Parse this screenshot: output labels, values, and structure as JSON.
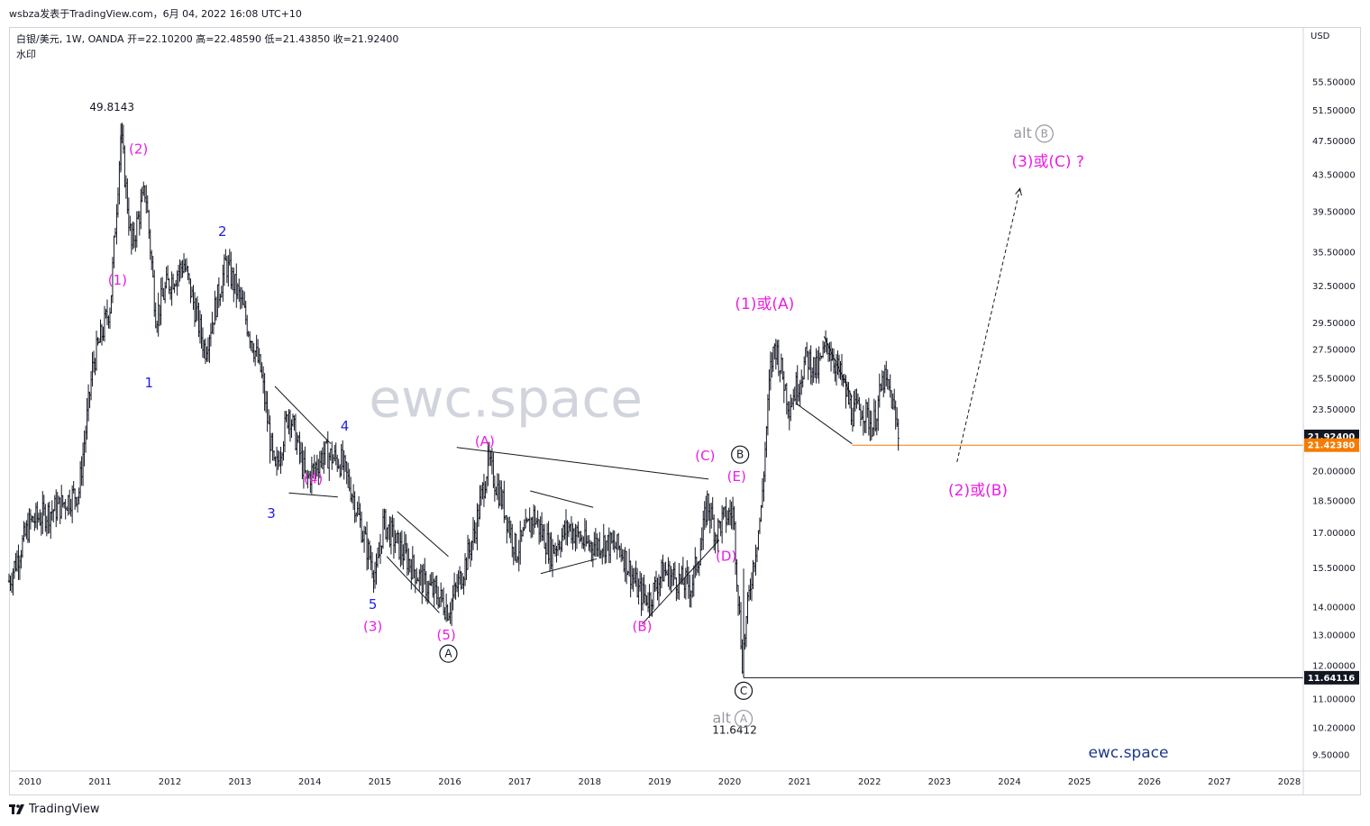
{
  "header": {
    "caption": "wsbza发表于TradingView.com，6月 04, 2022 16:08 UTC+10",
    "symbol_line": "白银/美元, 1W, OANDA  开=22.10200  高=22.48590  低=21.43850  收=21.92400",
    "watermark_label": "水印"
  },
  "footer": {
    "logo_text": "TradingView"
  },
  "colors": {
    "candle": "#131722",
    "magenta": "#e91ee3",
    "blue": "#1e22e6",
    "grey": "#9598a1",
    "orange": "#f57c00",
    "watermark": "#d1d4dc",
    "brand": "#1e3a8a"
  },
  "chart_data": {
    "type": "candlestick",
    "currency": "USD",
    "y_scale": "log",
    "ylim": [
      9.2,
      64
    ],
    "xlim": [
      2009.7,
      2028.2
    ],
    "x_ticks": [
      "2010",
      "2011",
      "2012",
      "2013",
      "2014",
      "2015",
      "2016",
      "2017",
      "2018",
      "2019",
      "2020",
      "2021",
      "2022",
      "2023",
      "2024",
      "2025",
      "2026",
      "2027",
      "2028"
    ],
    "y_ticks": [
      9.5,
      10.2,
      11.0,
      12.0,
      13.0,
      14.0,
      15.5,
      17.0,
      18.5,
      20.0,
      21.5,
      23.5,
      25.5,
      27.5,
      29.5,
      32.5,
      35.5,
      39.5,
      43.5,
      47.5,
      51.5,
      55.5,
      61.5
    ],
    "price_path": [
      [
        2009.7,
        15.0
      ],
      [
        2010.0,
        17.5
      ],
      [
        2010.4,
        18.2
      ],
      [
        2010.7,
        19.0
      ],
      [
        2010.9,
        26.5
      ],
      [
        2011.15,
        31.0
      ],
      [
        2011.3,
        48.5
      ],
      [
        2011.45,
        36.0
      ],
      [
        2011.65,
        42.0
      ],
      [
        2011.8,
        30.0
      ],
      [
        2011.95,
        32.5
      ],
      [
        2012.2,
        34.5
      ],
      [
        2012.5,
        27.5
      ],
      [
        2012.8,
        34.5
      ],
      [
        2013.0,
        31.5
      ],
      [
        2013.3,
        26.0
      ],
      [
        2013.5,
        19.8
      ],
      [
        2013.7,
        23.5
      ],
      [
        2013.95,
        19.5
      ],
      [
        2014.2,
        21.0
      ],
      [
        2014.45,
        20.5
      ],
      [
        2014.6,
        19.0
      ],
      [
        2014.8,
        16.5
      ],
      [
        2014.95,
        15.2
      ],
      [
        2015.05,
        17.5
      ],
      [
        2015.3,
        16.3
      ],
      [
        2015.6,
        15.0
      ],
      [
        2015.85,
        14.4
      ],
      [
        2015.98,
        13.9
      ],
      [
        2016.2,
        15.5
      ],
      [
        2016.35,
        17.0
      ],
      [
        2016.55,
        20.5
      ],
      [
        2016.75,
        18.5
      ],
      [
        2016.95,
        16.2
      ],
      [
        2017.2,
        17.8
      ],
      [
        2017.45,
        16.2
      ],
      [
        2017.7,
        17.3
      ],
      [
        2017.95,
        16.5
      ],
      [
        2018.2,
        16.6
      ],
      [
        2018.45,
        16.3
      ],
      [
        2018.7,
        14.6
      ],
      [
        2018.85,
        14.3
      ],
      [
        2019.05,
        15.4
      ],
      [
        2019.3,
        15.0
      ],
      [
        2019.45,
        14.8
      ],
      [
        2019.6,
        16.6
      ],
      [
        2019.68,
        18.5
      ],
      [
        2019.8,
        17.0
      ],
      [
        2019.9,
        17.6
      ],
      [
        2020.05,
        18.0
      ],
      [
        2020.18,
        12.2
      ],
      [
        2020.3,
        15.0
      ],
      [
        2020.45,
        18.0
      ],
      [
        2020.58,
        26.0
      ],
      [
        2020.65,
        28.0
      ],
      [
        2020.85,
        23.8
      ],
      [
        2021.0,
        25.5
      ],
      [
        2021.1,
        27.0
      ],
      [
        2021.25,
        26.0
      ],
      [
        2021.4,
        28.0
      ],
      [
        2021.6,
        25.5
      ],
      [
        2021.75,
        23.3
      ],
      [
        2021.9,
        23.6
      ],
      [
        2022.05,
        22.5
      ],
      [
        2022.2,
        25.5
      ],
      [
        2022.3,
        24.5
      ],
      [
        2022.42,
        21.9
      ]
    ],
    "extreme_labels": [
      {
        "x": 2011.3,
        "y": 49.8143,
        "text": "49.8143"
      },
      {
        "x": 2020.2,
        "y": 11.6412,
        "text": "11.6412"
      }
    ],
    "price_tags": [
      {
        "value": "21.92400",
        "y": 21.924,
        "style": "dark"
      },
      {
        "value": "21.42380",
        "y": 21.4238,
        "style": "orange"
      },
      {
        "value": "11.64116",
        "y": 11.64116,
        "style": "dark"
      }
    ],
    "horizontal_lines": [
      {
        "x1": 2021.75,
        "x2": 2028.2,
        "y": 21.4238,
        "color": "orange"
      },
      {
        "x1": 2020.2,
        "x2": 2028.2,
        "y": 11.64116,
        "color": "dark"
      }
    ],
    "trendlines": [
      {
        "x1": 2013.5,
        "y1": 25.0,
        "x2": 2014.3,
        "y2": 21.5,
        "width": 1
      },
      {
        "x1": 2013.7,
        "y1": 18.9,
        "x2": 2014.4,
        "y2": 18.7,
        "width": 1
      },
      {
        "x1": 2015.1,
        "y1": 16.0,
        "x2": 2015.85,
        "y2": 13.8,
        "width": 1
      },
      {
        "x1": 2015.25,
        "y1": 18.0,
        "x2": 2015.98,
        "y2": 16.0,
        "width": 1
      },
      {
        "x1": 2016.1,
        "y1": 21.3,
        "x2": 2019.7,
        "y2": 19.6,
        "width": 1
      },
      {
        "x1": 2017.15,
        "y1": 19.0,
        "x2": 2018.05,
        "y2": 18.2,
        "width": 1
      },
      {
        "x1": 2017.3,
        "y1": 15.3,
        "x2": 2018.1,
        "y2": 15.9,
        "width": 1
      },
      {
        "x1": 2018.75,
        "y1": 13.4,
        "x2": 2019.85,
        "y2": 16.7,
        "width": 1
      },
      {
        "x1": 2021.35,
        "y1": 28.5,
        "x2": 2021.75,
        "y2": 24.3,
        "width": 1
      },
      {
        "x1": 2020.95,
        "y1": 23.9,
        "x2": 2021.75,
        "y2": 21.5,
        "width": 1
      }
    ],
    "projection_arrow": {
      "x1": 2023.25,
      "y1": 20.5,
      "x2": 2024.15,
      "y2": 42.0
    },
    "wave_labels": [
      {
        "x": 2011.55,
        "y": 46.5,
        "text": "(2)",
        "color": "magenta"
      },
      {
        "x": 2011.25,
        "y": 33.0,
        "text": "(1)",
        "color": "magenta"
      },
      {
        "x": 2011.7,
        "y": 25.2,
        "text": "1",
        "color": "blue"
      },
      {
        "x": 2012.75,
        "y": 37.5,
        "text": "2",
        "color": "blue"
      },
      {
        "x": 2013.45,
        "y": 17.9,
        "text": "3",
        "color": "blue"
      },
      {
        "x": 2014.5,
        "y": 22.5,
        "text": "4",
        "color": "blue"
      },
      {
        "x": 2014.05,
        "y": 19.6,
        "text": "(4)",
        "color": "magenta"
      },
      {
        "x": 2014.9,
        "y": 14.1,
        "text": "5",
        "color": "blue"
      },
      {
        "x": 2014.9,
        "y": 13.3,
        "text": "(3)",
        "color": "magenta"
      },
      {
        "x": 2015.95,
        "y": 13.0,
        "text": "(5)",
        "color": "magenta"
      },
      {
        "x": 2016.5,
        "y": 21.6,
        "text": "(A)",
        "color": "magenta"
      },
      {
        "x": 2018.75,
        "y": 13.3,
        "text": "(B)",
        "color": "magenta"
      },
      {
        "x": 2019.65,
        "y": 20.8,
        "text": "(C)",
        "color": "magenta"
      },
      {
        "x": 2019.95,
        "y": 16.0,
        "text": "(D)",
        "color": "magenta"
      },
      {
        "x": 2020.1,
        "y": 19.7,
        "text": "(E)",
        "color": "magenta"
      },
      {
        "x": 2020.5,
        "y": 31.0,
        "text": "(1)或(A)",
        "color": "magenta"
      },
      {
        "x": 2023.55,
        "y": 19.0,
        "text": "(2)或(B)",
        "color": "magenta"
      },
      {
        "x": 2024.55,
        "y": 45.0,
        "text": "(3)或(C) ?",
        "color": "magenta"
      }
    ],
    "circle_labels": [
      {
        "x": 2015.98,
        "y": 12.4,
        "text": "A",
        "color": "dark"
      },
      {
        "x": 2020.15,
        "y": 20.9,
        "text": "B",
        "color": "dark"
      },
      {
        "x": 2020.2,
        "y": 11.25,
        "text": "C",
        "color": "dark"
      },
      {
        "x": 2020.2,
        "y": 10.45,
        "text": "A",
        "prefix": "alt",
        "color": "grey"
      },
      {
        "x": 2024.5,
        "y": 48.5,
        "text": "B",
        "prefix": "alt",
        "color": "grey"
      }
    ],
    "watermark": {
      "x": 2016.8,
      "y": 24.0,
      "text": "ewc.space"
    },
    "brand_label": {
      "x": 2025.7,
      "y": 9.55,
      "text": "ewc.space"
    }
  }
}
